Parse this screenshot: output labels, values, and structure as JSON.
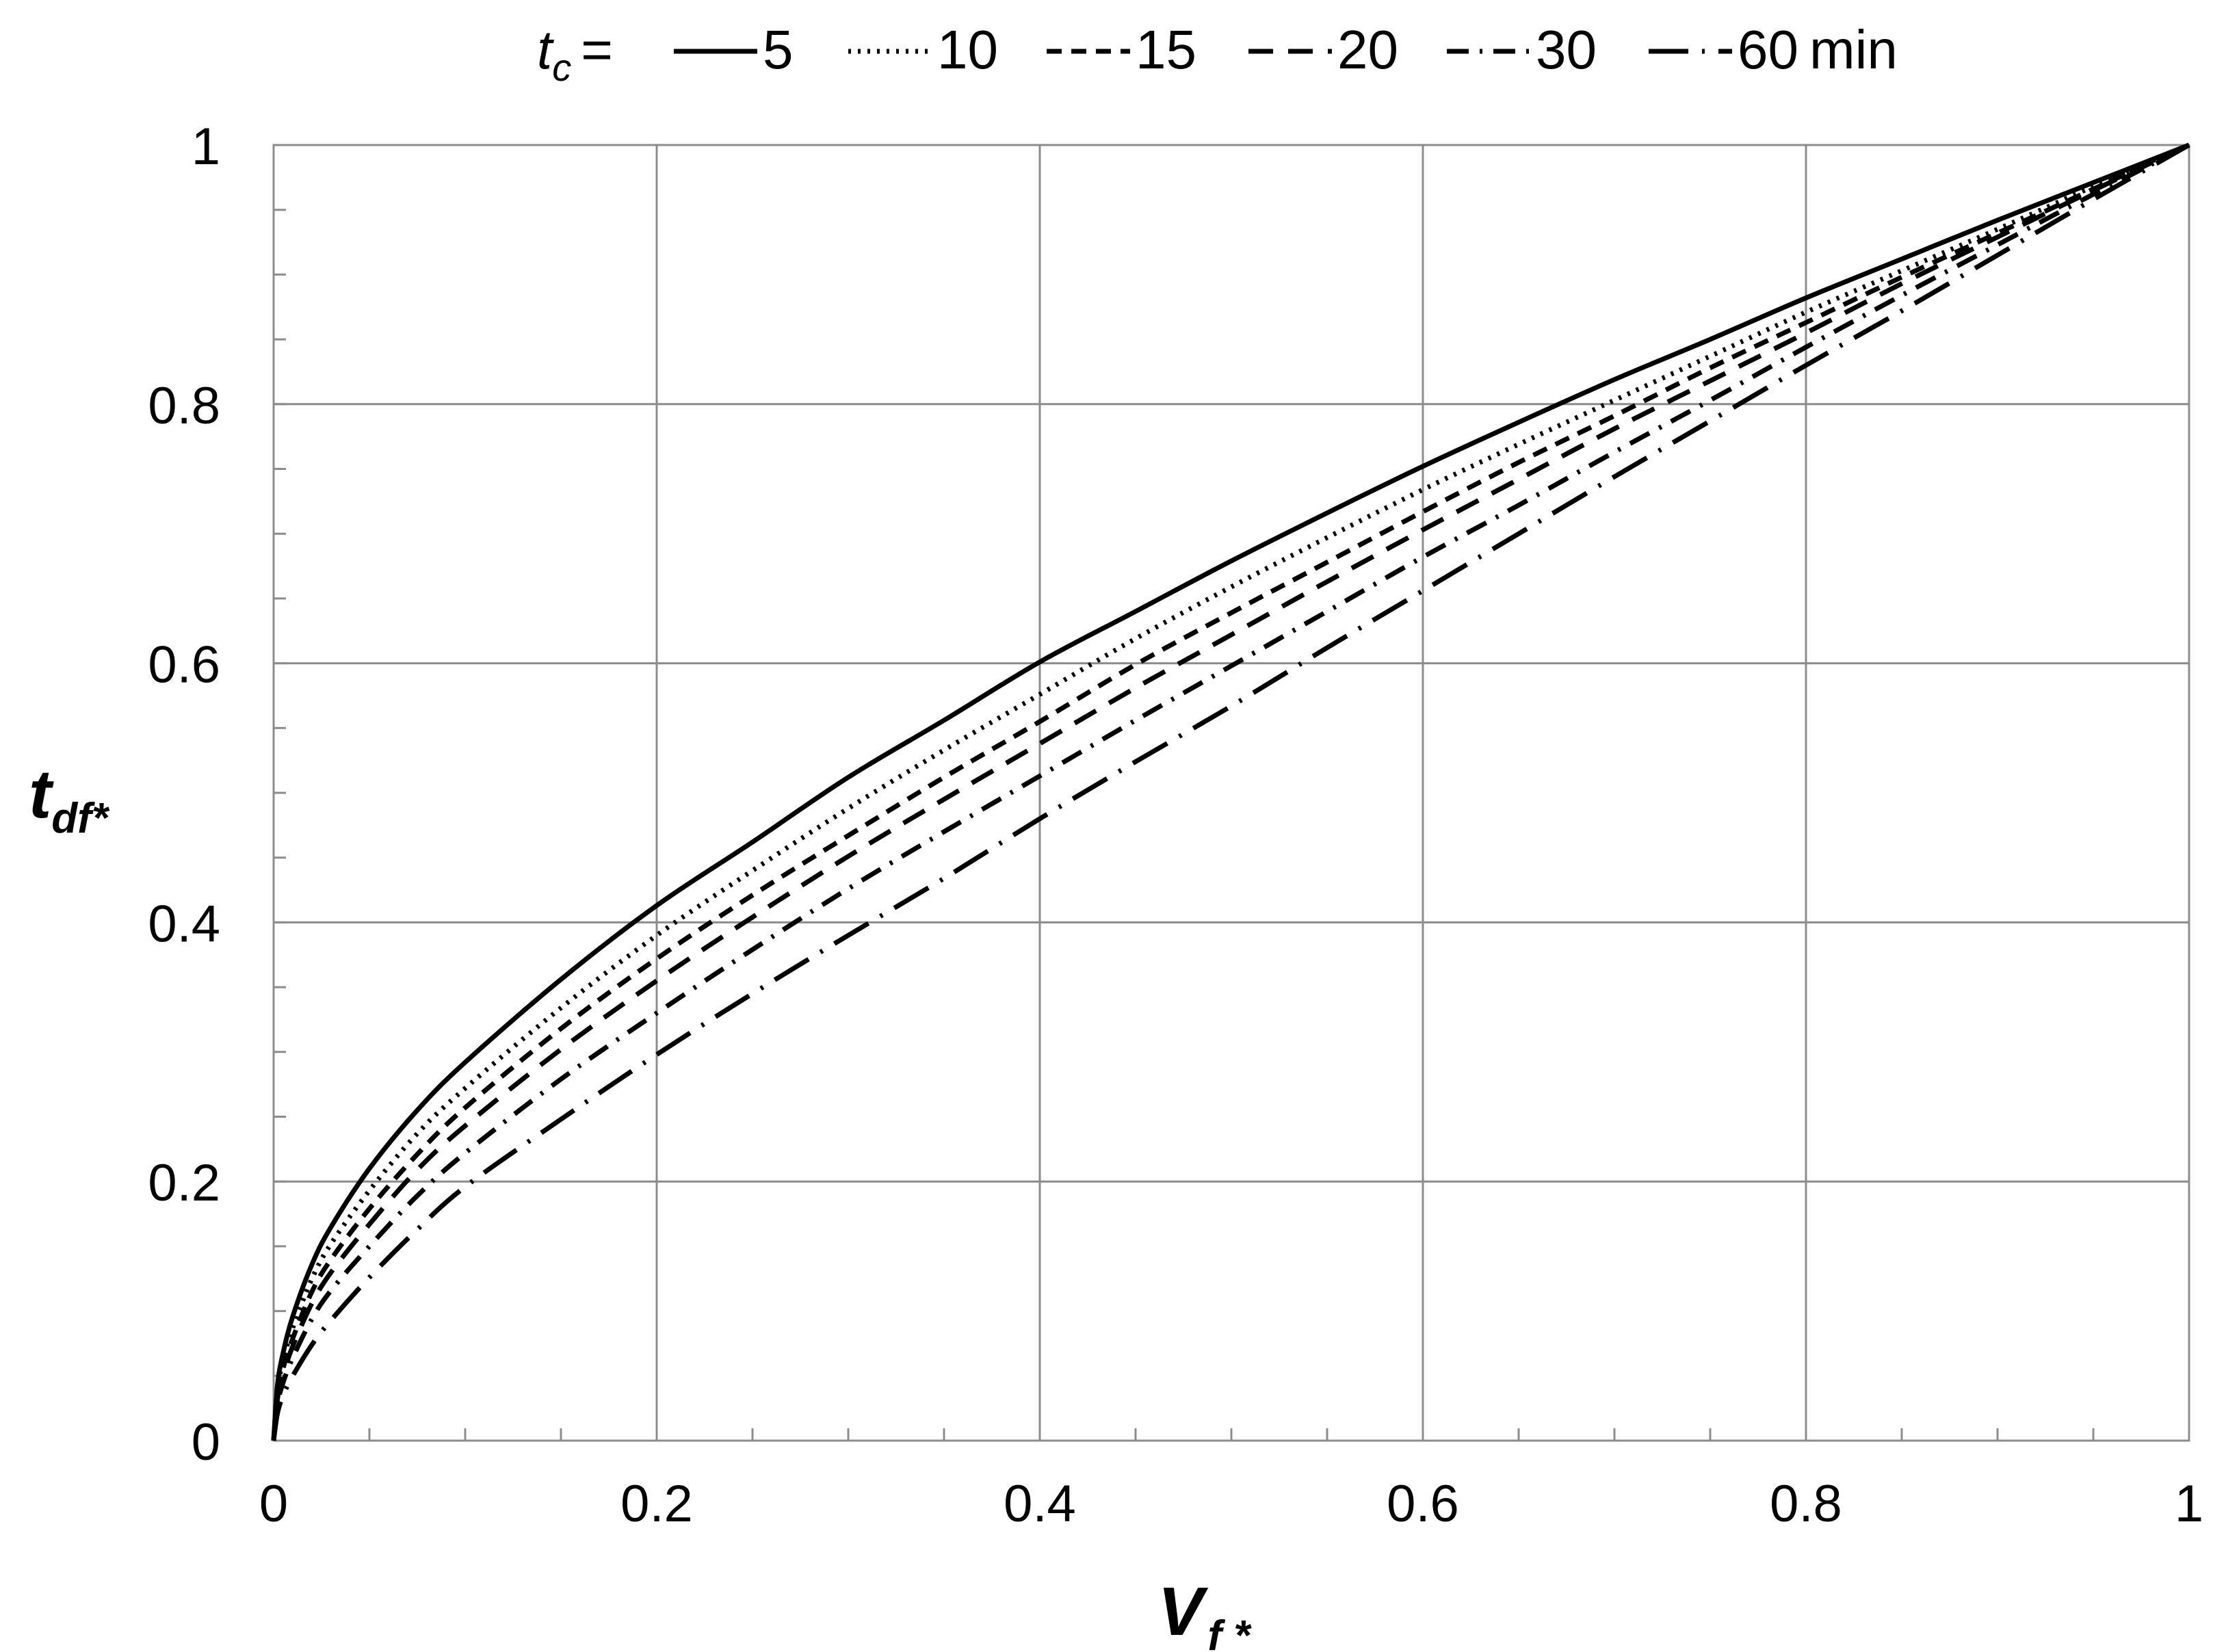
{
  "chart_data": {
    "type": "line",
    "xlabel": {
      "main": "V",
      "sub": "f *"
    },
    "ylabel": {
      "main": "t",
      "sub": "df*"
    },
    "xlim": [
      0,
      1
    ],
    "ylim": [
      0,
      1
    ],
    "x_ticks": [
      "0",
      "0.2",
      "0.4",
      "0.6",
      "0.8",
      "1"
    ],
    "y_ticks": [
      "0",
      "0.2",
      "0.4",
      "0.6",
      "0.8",
      "1"
    ],
    "grid": true,
    "legend": {
      "prefix_main": "t",
      "prefix_sub": "c",
      "prefix_suffix": "=",
      "placement": "top",
      "unit": "min"
    },
    "x": [
      0,
      0.002,
      0.005,
      0.01,
      0.02,
      0.03,
      0.05,
      0.075,
      0.1,
      0.15,
      0.2,
      0.25,
      0.3,
      0.35,
      0.4,
      0.45,
      0.5,
      0.55,
      0.6,
      0.65,
      0.7,
      0.75,
      0.8,
      0.85,
      0.9,
      0.95,
      1.0
    ],
    "series": [
      {
        "name": "5",
        "dash": "solid",
        "values": [
          0,
          0.043,
          0.068,
          0.096,
          0.136,
          0.165,
          0.21,
          0.255,
          0.292,
          0.356,
          0.413,
          0.462,
          0.512,
          0.556,
          0.601,
          0.64,
          0.679,
          0.716,
          0.752,
          0.786,
          0.819,
          0.85,
          0.882,
          0.912,
          0.942,
          0.971,
          1.0
        ]
      },
      {
        "name": "10",
        "dash": "dotted",
        "values": [
          0,
          0.039,
          0.062,
          0.087,
          0.125,
          0.152,
          0.193,
          0.237,
          0.272,
          0.334,
          0.39,
          0.44,
          0.488,
          0.533,
          0.576,
          0.619,
          0.659,
          0.697,
          0.734,
          0.769,
          0.803,
          0.837,
          0.871,
          0.903,
          0.935,
          0.968,
          1.0
        ]
      },
      {
        "name": "15",
        "dash": "short-dash",
        "values": [
          0,
          0.035,
          0.056,
          0.079,
          0.115,
          0.14,
          0.179,
          0.221,
          0.257,
          0.318,
          0.372,
          0.421,
          0.467,
          0.512,
          0.555,
          0.599,
          0.639,
          0.678,
          0.717,
          0.755,
          0.791,
          0.828,
          0.863,
          0.898,
          0.932,
          0.966,
          1.0
        ]
      },
      {
        "name": "20",
        "dash": "dash",
        "values": [
          0,
          0.032,
          0.051,
          0.073,
          0.106,
          0.13,
          0.167,
          0.209,
          0.243,
          0.302,
          0.355,
          0.404,
          0.451,
          0.495,
          0.538,
          0.581,
          0.622,
          0.663,
          0.703,
          0.742,
          0.781,
          0.818,
          0.855,
          0.893,
          0.929,
          0.965,
          1.0
        ]
      },
      {
        "name": "30",
        "dash": "dash-dot",
        "values": [
          0,
          0.028,
          0.045,
          0.064,
          0.094,
          0.116,
          0.15,
          0.189,
          0.222,
          0.279,
          0.33,
          0.379,
          0.426,
          0.47,
          0.513,
          0.556,
          0.598,
          0.64,
          0.682,
          0.722,
          0.763,
          0.803,
          0.844,
          0.884,
          0.923,
          0.962,
          1.0
        ]
      },
      {
        "name": "60",
        "dash": "long-dash-dot",
        "values": [
          0,
          0.021,
          0.035,
          0.05,
          0.074,
          0.093,
          0.126,
          0.163,
          0.196,
          0.248,
          0.298,
          0.345,
          0.39,
          0.434,
          0.48,
          0.524,
          0.567,
          0.612,
          0.656,
          0.7,
          0.744,
          0.787,
          0.83,
          0.872,
          0.915,
          0.958,
          1.0
        ]
      }
    ]
  }
}
